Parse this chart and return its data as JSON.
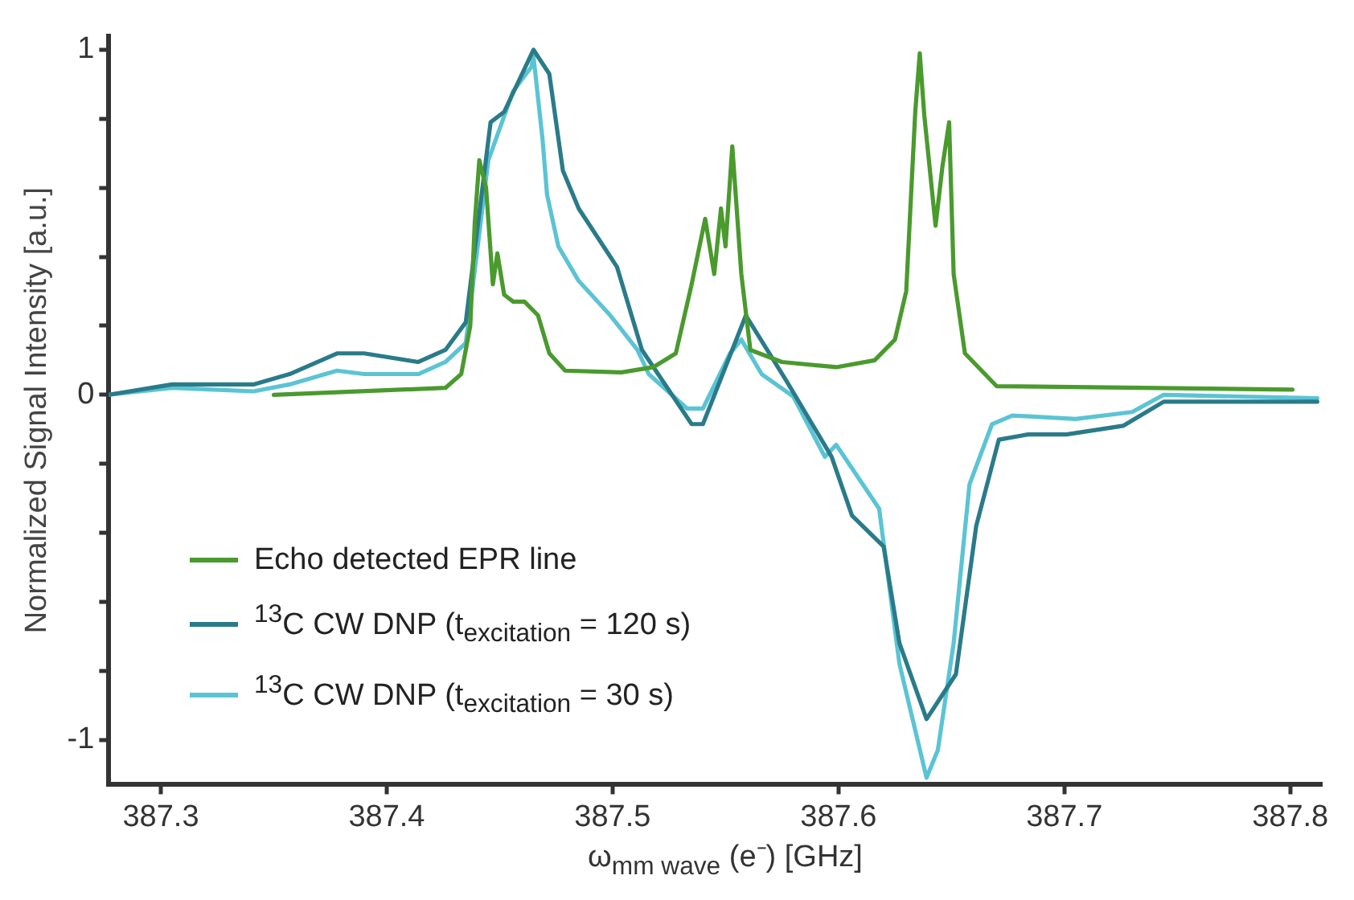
{
  "chart_data": {
    "type": "line",
    "xlabel": "ω$_{mm wave}$ (e⁻) [GHz]",
    "ylabel": "Normalized Signal Intensity [a.u.]",
    "xlim": [
      387.277,
      387.814
    ],
    "xticks": [
      387.3,
      387.4,
      387.5,
      387.6,
      387.7,
      387.8
    ],
    "ylim": [
      -1.13,
      1.04
    ],
    "yticks": [
      -1,
      {
        "value": -0.8,
        "label": null
      },
      {
        "value": -0.6,
        "label": null
      },
      {
        "value": -0.4,
        "label": null
      },
      {
        "value": -0.2,
        "label": null
      },
      0,
      {
        "value": 0.2,
        "label": null
      },
      {
        "value": 0.4,
        "label": null
      },
      {
        "value": 0.6,
        "label": null
      },
      {
        "value": 0.8,
        "label": null
      },
      1
    ],
    "grid": false,
    "legend": "bottom left",
    "marker": "none",
    "line_style": "solid",
    "series": [
      {
        "name": "Echo detected EPR line",
        "color": "#4a9a2e",
        "x": [
          387.35,
          387.426,
          387.433,
          387.437,
          387.439,
          387.441,
          387.444,
          387.447,
          387.449,
          387.452,
          387.456,
          387.461,
          387.467,
          387.472,
          387.479,
          387.504,
          387.518,
          387.528,
          387.535,
          387.541,
          387.545,
          387.548,
          387.55,
          387.553,
          387.557,
          387.561,
          387.575,
          387.599,
          387.616,
          387.625,
          387.63,
          387.634,
          387.636,
          387.638,
          387.643,
          387.646,
          387.649,
          387.651,
          387.656,
          387.67,
          387.801
        ],
        "values": [
          0,
          0.02,
          0.06,
          0.2,
          0.5,
          0.68,
          0.6,
          0.32,
          0.41,
          0.29,
          0.27,
          0.27,
          0.23,
          0.12,
          0.07,
          0.065,
          0.08,
          0.12,
          0.32,
          0.51,
          0.35,
          0.54,
          0.43,
          0.72,
          0.35,
          0.13,
          0.095,
          0.08,
          0.1,
          0.16,
          0.3,
          0.82,
          0.99,
          0.81,
          0.49,
          0.66,
          0.79,
          0.35,
          0.12,
          0.025,
          0.015
        ]
      },
      {
        "name": "$^{13}$C CW DNP (t$_{excitation}$ = 120 s)",
        "color": "#2a7b8a",
        "x": [
          387.277,
          387.305,
          387.341,
          387.357,
          387.378,
          387.39,
          387.414,
          387.426,
          387.435,
          387.446,
          387.452,
          387.465,
          387.472,
          387.478,
          387.485,
          387.502,
          387.513,
          387.535,
          387.54,
          387.559,
          387.577,
          387.597,
          387.606,
          387.62,
          387.627,
          387.639,
          387.646,
          387.652,
          387.661,
          387.671,
          387.684,
          387.701,
          387.726,
          387.744,
          387.812
        ],
        "values": [
          0,
          0.03,
          0.03,
          0.06,
          0.12,
          0.12,
          0.095,
          0.13,
          0.21,
          0.79,
          0.82,
          1.0,
          0.93,
          0.65,
          0.54,
          0.37,
          0.13,
          -0.085,
          -0.085,
          0.23,
          0.04,
          -0.18,
          -0.35,
          -0.44,
          -0.72,
          -0.94,
          -0.87,
          -0.81,
          -0.38,
          -0.13,
          -0.115,
          -0.115,
          -0.09,
          -0.02,
          -0.02
        ]
      },
      {
        "name": "$^{13}$C CW DNP (t$_{excitation}$ = 30 s)",
        "color": "#5bc4d4",
        "x": [
          387.277,
          387.305,
          387.341,
          387.357,
          387.378,
          387.39,
          387.414,
          387.426,
          387.435,
          387.445,
          387.456,
          387.464,
          387.465,
          387.469,
          387.471,
          387.476,
          387.485,
          387.499,
          387.511,
          387.516,
          387.533,
          387.54,
          387.552,
          387.557,
          387.566,
          387.58,
          387.594,
          387.599,
          387.618,
          387.627,
          387.639,
          387.644,
          387.651,
          387.658,
          387.668,
          387.677,
          387.705,
          387.73,
          387.744,
          387.812
        ],
        "values": [
          0,
          0.02,
          0.01,
          0.03,
          0.07,
          0.06,
          0.06,
          0.095,
          0.15,
          0.68,
          0.88,
          0.95,
          0.98,
          0.74,
          0.58,
          0.43,
          0.33,
          0.23,
          0.13,
          0.06,
          -0.04,
          -0.04,
          0.12,
          0.16,
          0.06,
          -0.005,
          -0.18,
          -0.145,
          -0.33,
          -0.78,
          -1.11,
          -1.03,
          -0.72,
          -0.26,
          -0.085,
          -0.06,
          -0.07,
          -0.05,
          0,
          -0.01
        ]
      }
    ]
  }
}
